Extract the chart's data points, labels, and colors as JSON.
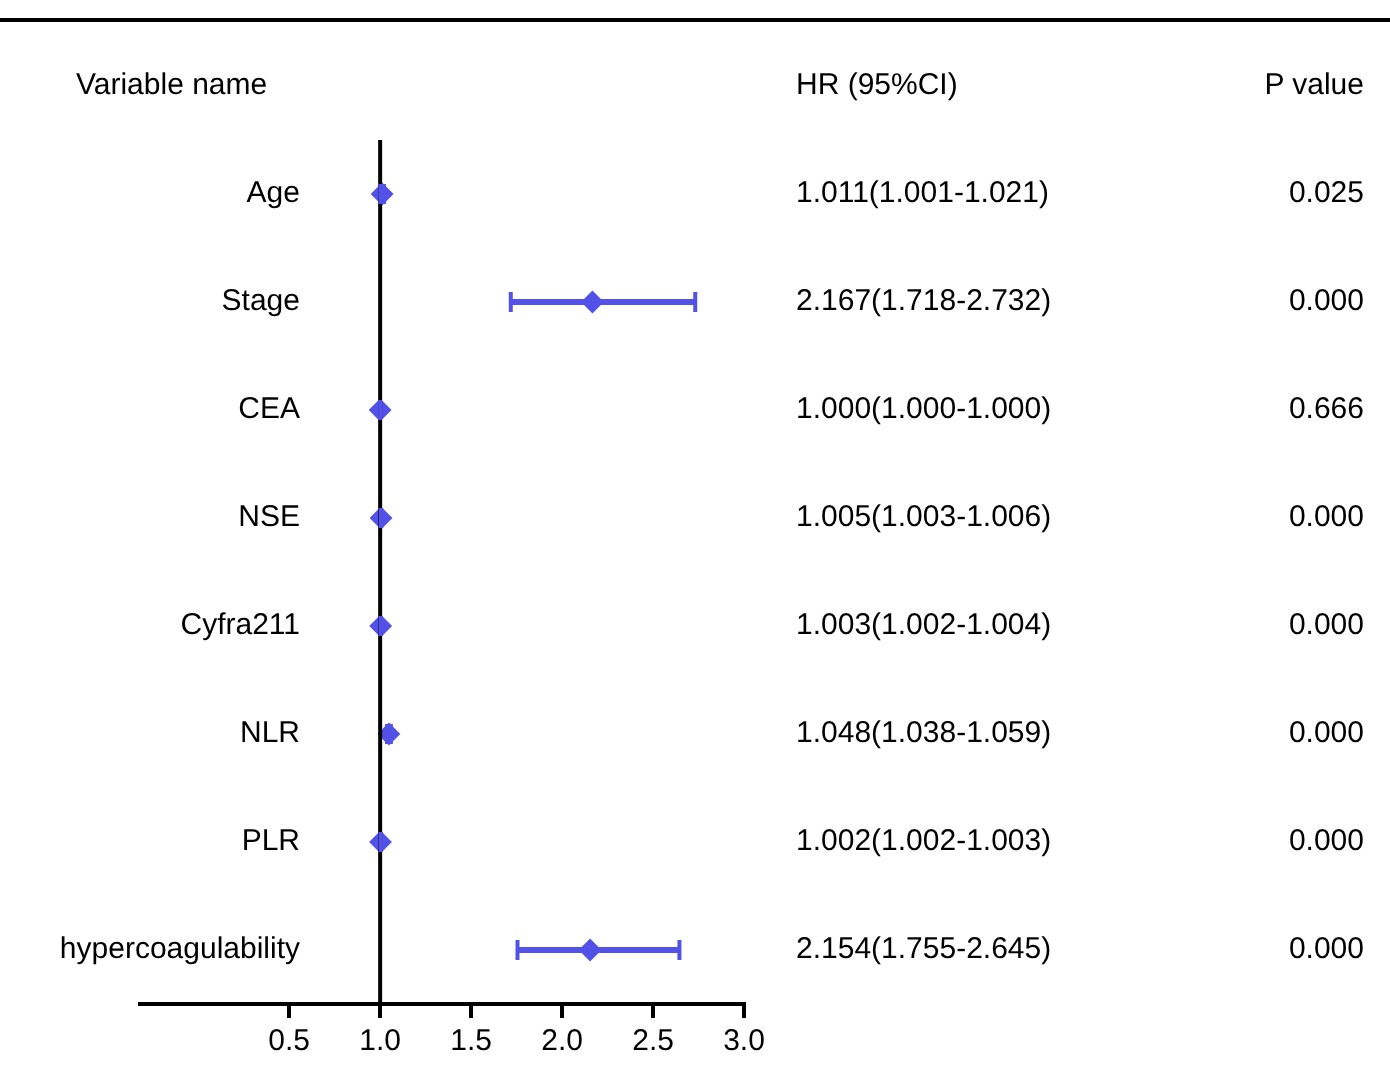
{
  "chart_data": {
    "type": "scatter",
    "orientation": "horizontal",
    "marker": "diamond",
    "grid": false,
    "legend": false,
    "categories": [
      "Age",
      "Stage",
      "CEA",
      "NSE",
      "Cyfra211",
      "NLR",
      "PLR",
      "hypercoagulability"
    ],
    "values": [
      1.011,
      2.167,
      1.0,
      1.005,
      1.003,
      1.048,
      1.002,
      2.154
    ],
    "errors": [
      [
        1.001,
        1.021
      ],
      [
        1.718,
        2.732
      ],
      [
        1.0,
        1.0
      ],
      [
        1.003,
        1.006
      ],
      [
        1.002,
        1.004
      ],
      [
        1.038,
        1.059
      ],
      [
        1.002,
        1.003
      ],
      [
        1.755,
        2.645
      ]
    ],
    "color": "#5252e8",
    "value_labels": [
      "1.011(1.001-1.021)",
      "2.167(1.718-2.732)",
      "1.000(1.000-1.000)",
      "1.005(1.003-1.006)",
      "1.003(1.002-1.004)",
      "1.048(1.038-1.059)",
      "1.002(1.002-1.003)",
      "2.154(1.755-2.645)"
    ],
    "xlim": [
      -0.32,
      3.0
    ],
    "xticks": [
      0.5,
      {
        "value": 1,
        "label": "1.0"
      },
      1.5,
      {
        "value": 2,
        "label": "2.0"
      },
      2.5,
      {
        "value": 3,
        "label": "3.0"
      }
    ],
    "ref_lines": [
      {
        "axis": "x",
        "value": 1,
        "color": "#000000"
      }
    ],
    "annotations": [
      "Variable name",
      "HR (95%CI)",
      "P value",
      "0.025",
      "0.000",
      "0.666",
      "0.000",
      "0.000",
      "0.000",
      "0.000",
      "0.000"
    ]
  }
}
